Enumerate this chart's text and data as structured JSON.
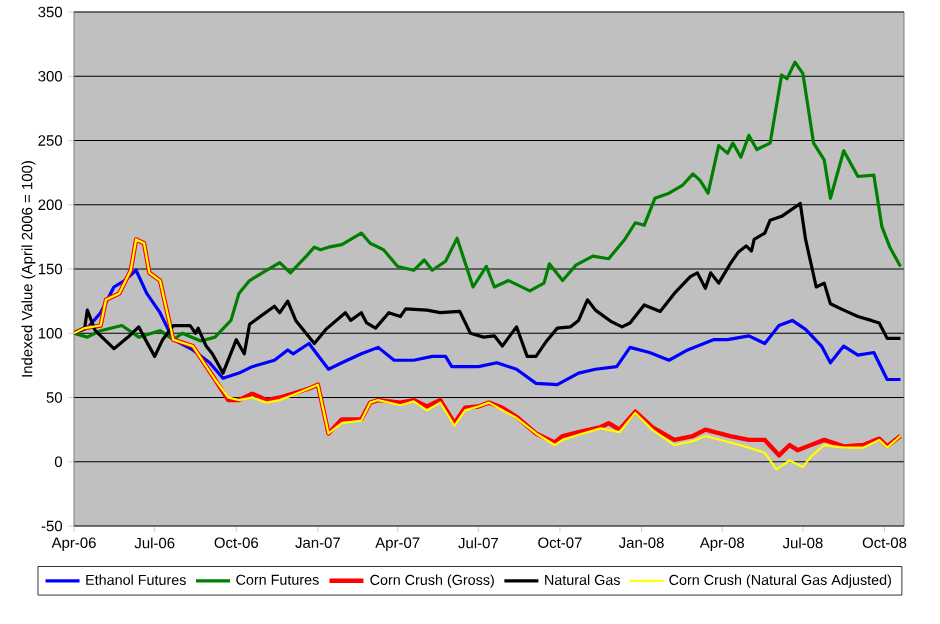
{
  "chart_data": {
    "type": "line",
    "ylabel": "Indexed Value (April 2006 = 100)",
    "xlim": [
      "2006-04-01",
      "2008-10-23"
    ],
    "xticks": [
      {
        "value": "2006-04-01",
        "label": "Apr-06"
      },
      {
        "value": "2006-07-01",
        "label": "Jul-06"
      },
      {
        "value": "2006-10-01",
        "label": "Oct-06"
      },
      {
        "value": "2007-01-01",
        "label": "Jan-07"
      },
      {
        "value": "2007-04-01",
        "label": "Apr-07"
      },
      {
        "value": "2007-07-01",
        "label": "Jul-07"
      },
      {
        "value": "2007-10-01",
        "label": "Oct-07"
      },
      {
        "value": "2008-01-01",
        "label": "Jan-08"
      },
      {
        "value": "2008-04-01",
        "label": "Apr-08"
      },
      {
        "value": "2008-07-01",
        "label": "Jul-08"
      },
      {
        "value": "2008-10-01",
        "label": "Oct-08"
      }
    ],
    "ylim": [
      -50,
      350
    ],
    "yticks": [
      -50,
      0,
      50,
      100,
      150,
      200,
      250,
      300,
      350
    ],
    "grid": "y",
    "legend": "bottom",
    "series": [
      {
        "name": "Ethanol Futures",
        "color": "#0000ff",
        "x": [
          "2006-04-01",
          "2006-04-16",
          "2006-05-01",
          "2006-05-16",
          "2006-05-28",
          "2006-06-10",
          "2006-06-22",
          "2006-07-07",
          "2006-07-22",
          "2006-08-13",
          "2006-09-01",
          "2006-09-16",
          "2006-10-04",
          "2006-10-19",
          "2006-11-13",
          "2006-11-28",
          "2006-12-04",
          "2006-12-22",
          "2007-01-13",
          "2007-01-28",
          "2007-02-19",
          "2007-03-10",
          "2007-03-28",
          "2007-04-19",
          "2007-05-10",
          "2007-05-25",
          "2007-06-01",
          "2007-07-01",
          "2007-07-22",
          "2007-08-13",
          "2007-09-04",
          "2007-09-28",
          "2007-10-22",
          "2007-11-10",
          "2007-12-04",
          "2007-12-19",
          "2008-01-10",
          "2008-02-01",
          "2008-02-22",
          "2008-03-22",
          "2008-04-07",
          "2008-05-01",
          "2008-05-19",
          "2008-06-04",
          "2008-06-19",
          "2008-07-04",
          "2008-07-22",
          "2008-08-01",
          "2008-08-16",
          "2008-09-01",
          "2008-09-19",
          "2008-10-04",
          "2008-10-19"
        ],
        "values": [
          100,
          104,
          116,
          136,
          141,
          149,
          131,
          116,
          95,
          87,
          77,
          65,
          69,
          74,
          79,
          87,
          84,
          92,
          72,
          77,
          84,
          89,
          79,
          79,
          82,
          82,
          74,
          74,
          77,
          72,
          61,
          60,
          69,
          72,
          74,
          89,
          85,
          79,
          87,
          95,
          95,
          98,
          92,
          106,
          110,
          103,
          90,
          77,
          90,
          83,
          85,
          64,
          64
        ]
      },
      {
        "name": "Corn Futures",
        "color": "#008000",
        "x": [
          "2006-04-01",
          "2006-04-16",
          "2006-05-01",
          "2006-05-25",
          "2006-06-13",
          "2006-07-07",
          "2006-07-22",
          "2006-08-01",
          "2006-08-22",
          "2006-09-07",
          "2006-09-25",
          "2006-10-04",
          "2006-10-16",
          "2006-11-04",
          "2006-11-19",
          "2006-12-01",
          "2006-12-19",
          "2006-12-28",
          "2007-01-04",
          "2007-01-13",
          "2007-01-28",
          "2007-02-19",
          "2007-03-01",
          "2007-03-16",
          "2007-04-01",
          "2007-04-19",
          "2007-05-01",
          "2007-05-10",
          "2007-05-25",
          "2007-06-07",
          "2007-06-25",
          "2007-07-10",
          "2007-07-19",
          "2007-08-04",
          "2007-08-16",
          "2007-08-28",
          "2007-09-13",
          "2007-09-19",
          "2007-10-04",
          "2007-10-19",
          "2007-11-07",
          "2007-11-25",
          "2007-12-13",
          "2007-12-25",
          "2008-01-04",
          "2008-01-16",
          "2008-02-01",
          "2008-02-16",
          "2008-02-28",
          "2008-03-07",
          "2008-03-16",
          "2008-03-28",
          "2008-04-07",
          "2008-04-13",
          "2008-04-22",
          "2008-05-01",
          "2008-05-10",
          "2008-05-25",
          "2008-06-07",
          "2008-06-13",
          "2008-06-22",
          "2008-07-01",
          "2008-07-13",
          "2008-07-25",
          "2008-08-01",
          "2008-08-16",
          "2008-09-01",
          "2008-09-19",
          "2008-09-28",
          "2008-10-07",
          "2008-10-19"
        ],
        "values": [
          100,
          97,
          102,
          106,
          97,
          102,
          95,
          100,
          94,
          97,
          110,
          131,
          141,
          149,
          155,
          147,
          160,
          167,
          165,
          167,
          169,
          178,
          170,
          165,
          152,
          149,
          157,
          149,
          156,
          174,
          136,
          152,
          136,
          141,
          137,
          133,
          139,
          154,
          141,
          153,
          160,
          158,
          173,
          186,
          184,
          205,
          209,
          215,
          224,
          219,
          209,
          246,
          240,
          248,
          237,
          254,
          243,
          248,
          301,
          298,
          311,
          302,
          248,
          235,
          205,
          242,
          222,
          223,
          183,
          167,
          152
        ]
      },
      {
        "name": "Corn Crush (Gross)",
        "color": "#ff0000",
        "x": [
          "2006-04-01",
          "2006-04-13",
          "2006-05-01",
          "2006-05-07",
          "2006-05-22",
          "2006-06-04",
          "2006-06-10",
          "2006-06-19",
          "2006-06-25",
          "2006-07-07",
          "2006-07-22",
          "2006-08-13",
          "2006-09-07",
          "2006-09-22",
          "2006-10-04",
          "2006-10-19",
          "2006-11-04",
          "2006-11-19",
          "2006-12-04",
          "2006-12-22",
          "2007-01-01",
          "2007-01-13",
          "2007-01-28",
          "2007-02-19",
          "2007-03-01",
          "2007-03-10",
          "2007-04-04",
          "2007-04-19",
          "2007-05-04",
          "2007-05-19",
          "2007-06-04",
          "2007-06-16",
          "2007-07-01",
          "2007-07-13",
          "2007-07-28",
          "2007-08-13",
          "2007-09-04",
          "2007-09-25",
          "2007-10-04",
          "2007-10-22",
          "2007-11-16",
          "2007-11-25",
          "2007-12-07",
          "2007-12-25",
          "2008-01-13",
          "2008-02-07",
          "2008-02-28",
          "2008-03-13",
          "2008-04-10",
          "2008-05-01",
          "2008-05-19",
          "2008-06-04",
          "2008-06-16",
          "2008-06-25",
          "2008-07-10",
          "2008-07-25",
          "2008-08-16",
          "2008-09-07",
          "2008-09-25",
          "2008-10-04",
          "2008-10-19"
        ],
        "values": [
          100,
          104,
          106,
          126,
          131,
          149,
          173,
          170,
          147,
          141,
          95,
          90,
          64,
          48,
          48,
          53,
          48,
          50,
          53,
          57,
          60,
          22,
          33,
          33,
          46,
          48,
          46,
          48,
          43,
          48,
          30,
          42,
          43,
          46,
          42,
          35,
          22,
          15,
          20,
          23,
          27,
          30,
          25,
          39,
          27,
          17,
          20,
          25,
          20,
          17,
          17,
          5,
          13,
          9,
          13,
          17,
          12,
          13,
          18,
          12,
          20
        ]
      },
      {
        "name": "Natural Gas",
        "color": "#000000",
        "x": [
          "2006-04-01",
          "2006-04-13",
          "2006-04-16",
          "2006-04-25",
          "2006-05-16",
          "2006-06-01",
          "2006-06-13",
          "2006-06-19",
          "2006-07-01",
          "2006-07-10",
          "2006-07-22",
          "2006-08-10",
          "2006-08-16",
          "2006-08-19",
          "2006-08-28",
          "2006-09-04",
          "2006-09-16",
          "2006-10-01",
          "2006-10-10",
          "2006-10-16",
          "2006-11-01",
          "2006-11-13",
          "2006-11-19",
          "2006-11-28",
          "2006-12-07",
          "2006-12-28",
          "2007-01-10",
          "2007-02-01",
          "2007-02-07",
          "2007-02-19",
          "2007-02-25",
          "2007-03-07",
          "2007-03-22",
          "2007-04-04",
          "2007-04-10",
          "2007-05-04",
          "2007-05-19",
          "2007-06-10",
          "2007-06-22",
          "2007-07-07",
          "2007-07-19",
          "2007-07-28",
          "2007-08-13",
          "2007-08-25",
          "2007-09-04",
          "2007-09-16",
          "2007-09-28",
          "2007-10-13",
          "2007-10-22",
          "2007-11-01",
          "2007-11-10",
          "2007-11-28",
          "2007-12-10",
          "2007-12-19",
          "2008-01-04",
          "2008-01-22",
          "2008-02-07",
          "2008-02-25",
          "2008-03-04",
          "2008-03-13",
          "2008-03-19",
          "2008-03-28",
          "2008-04-10",
          "2008-04-19",
          "2008-04-28",
          "2008-05-04",
          "2008-05-07",
          "2008-05-19",
          "2008-05-25",
          "2008-06-07",
          "2008-06-28",
          "2008-07-04",
          "2008-07-16",
          "2008-07-25",
          "2008-08-01",
          "2008-08-16",
          "2008-09-01",
          "2008-09-16",
          "2008-09-25",
          "2008-10-04",
          "2008-10-19"
        ],
        "values": [
          100,
          104,
          118,
          102,
          88,
          97,
          105,
          97,
          82,
          95,
          106,
          106,
          100,
          104,
          90,
          84,
          69,
          95,
          84,
          107,
          115,
          121,
          116,
          125,
          110,
          92,
          103,
          116,
          110,
          116,
          108,
          104,
          116,
          113,
          119,
          118,
          116,
          117,
          100,
          97,
          98,
          90,
          105,
          82,
          82,
          94,
          104,
          105,
          110,
          126,
          118,
          109,
          105,
          108,
          122,
          117,
          131,
          144,
          147,
          135,
          147,
          139,
          154,
          163,
          168,
          164,
          173,
          178,
          188,
          191,
          201,
          173,
          136,
          139,
          123,
          118,
          113,
          110,
          108,
          96,
          96
        ]
      },
      {
        "name": "Corn Crush (Natural Gas Adjusted)",
        "color": "#ffff00",
        "x": [
          "2006-04-01",
          "2006-04-13",
          "2006-05-01",
          "2006-05-07",
          "2006-05-22",
          "2006-06-04",
          "2006-06-10",
          "2006-06-19",
          "2006-06-25",
          "2006-07-07",
          "2006-07-22",
          "2006-08-13",
          "2006-09-07",
          "2006-09-22",
          "2006-10-04",
          "2006-10-19",
          "2006-11-04",
          "2006-11-19",
          "2006-12-04",
          "2006-12-22",
          "2007-01-01",
          "2007-01-13",
          "2007-01-28",
          "2007-02-19",
          "2007-03-01",
          "2007-03-10",
          "2007-04-04",
          "2007-04-19",
          "2007-05-04",
          "2007-05-19",
          "2007-06-04",
          "2007-06-16",
          "2007-07-01",
          "2007-07-13",
          "2007-08-13",
          "2007-09-04",
          "2007-09-25",
          "2007-10-04",
          "2007-10-22",
          "2007-11-16",
          "2007-12-07",
          "2007-12-25",
          "2008-01-13",
          "2008-02-07",
          "2008-02-28",
          "2008-03-13",
          "2008-04-10",
          "2008-05-01",
          "2008-05-19",
          "2008-06-01",
          "2008-06-16",
          "2008-07-01",
          "2008-07-10",
          "2008-07-25",
          "2008-08-16",
          "2008-09-07",
          "2008-09-25",
          "2008-10-04",
          "2008-10-19"
        ],
        "values": [
          100,
          104,
          106,
          126,
          131,
          149,
          173,
          170,
          147,
          141,
          95,
          90,
          64,
          50,
          48,
          50,
          46,
          48,
          52,
          57,
          60,
          22,
          30,
          32,
          46,
          48,
          44,
          47,
          40,
          46,
          28,
          40,
          43,
          46,
          34,
          22,
          13,
          17,
          21,
          26,
          23,
          38,
          25,
          13,
          16,
          20,
          15,
          11,
          7,
          -6,
          1,
          -4,
          4,
          13,
          11,
          11,
          17,
          11,
          20
        ]
      }
    ]
  }
}
